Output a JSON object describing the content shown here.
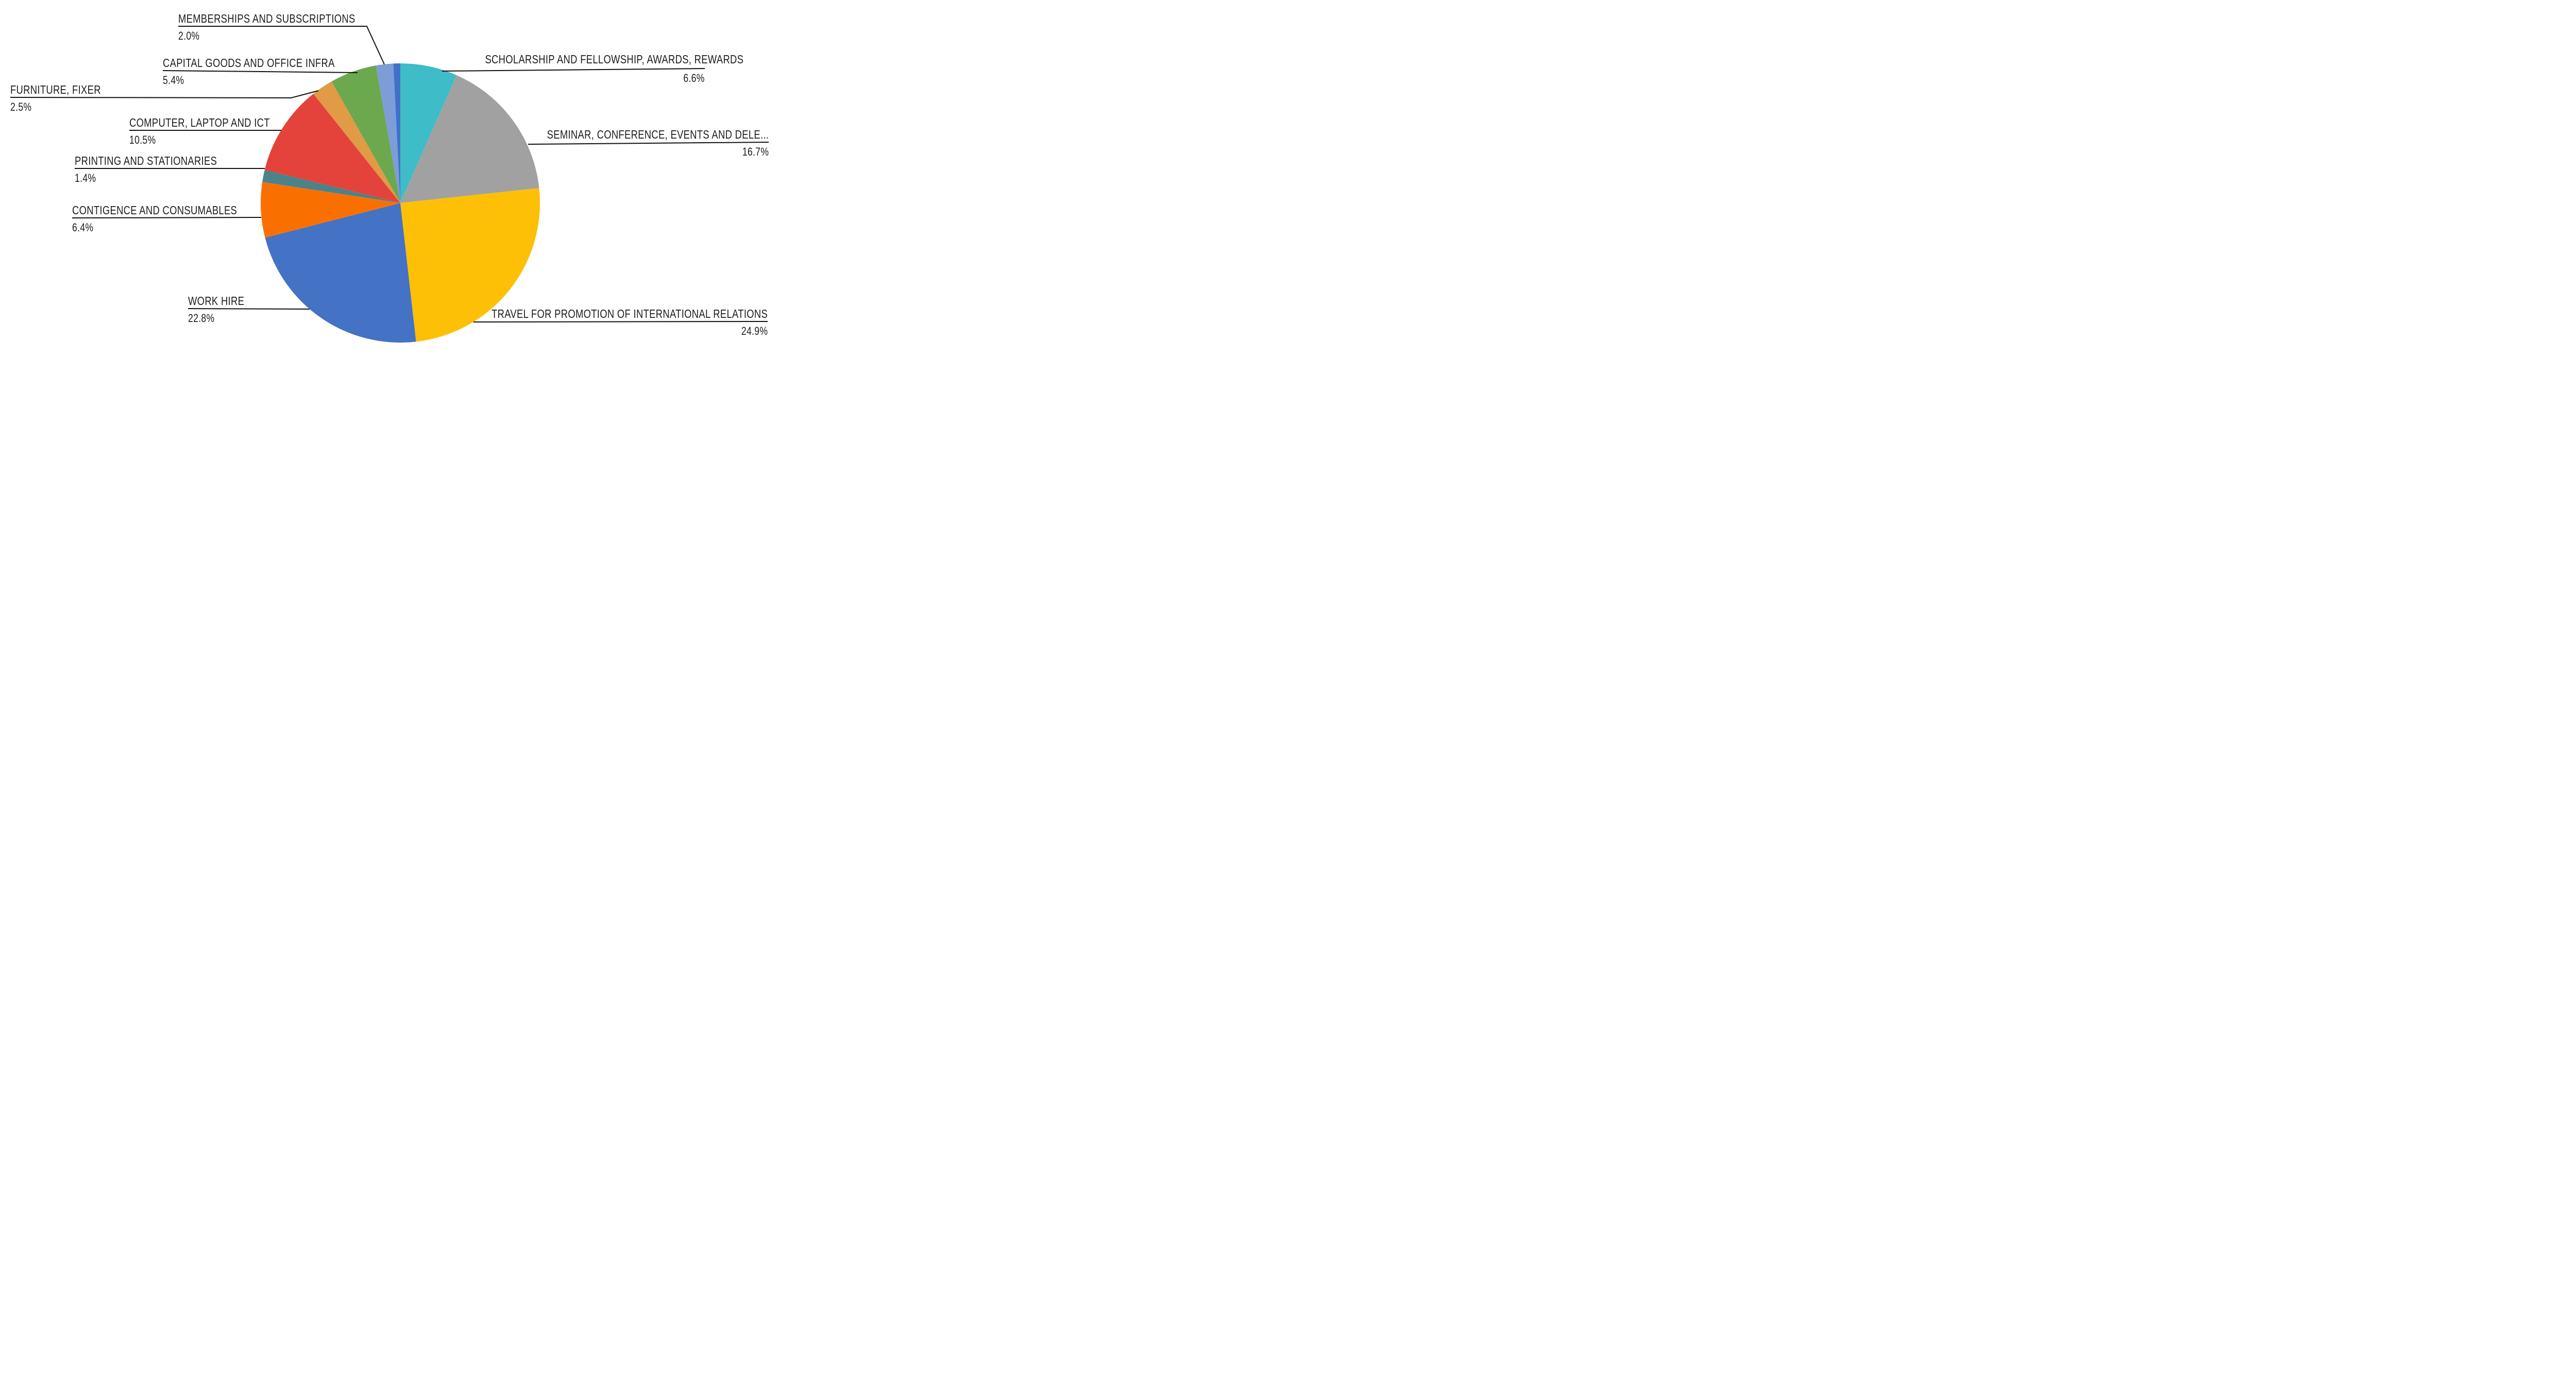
{
  "chart_data": {
    "type": "pie",
    "title": "",
    "legend_position": "none",
    "start_angle_deg": 0,
    "direction": "clockwise",
    "units": "percent",
    "slices": [
      {
        "label": "SCHOLARSHIP AND FELLOWSHIP, AWARDS, REWARDS",
        "value_pct": 6.6,
        "pct_label": "6.6%",
        "color": "#3EBCC8"
      },
      {
        "label": "SEMINAR, CONFERENCE, EVENTS AND DELE...",
        "value_pct": 16.7,
        "pct_label": "16.7%",
        "color": "#A1A1A1"
      },
      {
        "label": "TRAVEL FOR PROMOTION OF INTERNATIONAL RELATIONS",
        "value_pct": 24.9,
        "pct_label": "24.9%",
        "color": "#FEC006"
      },
      {
        "label": "WORK HIRE",
        "value_pct": 22.8,
        "pct_label": "22.8%",
        "color": "#4472C4"
      },
      {
        "label": "CONTIGENCE AND CONSUMABLES",
        "value_pct": 6.4,
        "pct_label": "6.4%",
        "color": "#FA7000"
      },
      {
        "label": "PRINTING AND STATIONARIES",
        "value_pct": 1.4,
        "pct_label": "1.4%",
        "color": "#4A8389"
      },
      {
        "label": "COMPUTER, LAPTOP AND ICT",
        "value_pct": 10.5,
        "pct_label": "10.5%",
        "color": "#E4433B"
      },
      {
        "label": "FURNITURE, FIXER",
        "value_pct": 2.5,
        "pct_label": "2.5%",
        "color": "#E19A45"
      },
      {
        "label": "CAPITAL GOODS AND OFFICE INFRA",
        "value_pct": 5.4,
        "pct_label": "5.4%",
        "color": "#6CA84E"
      },
      {
        "label": "MEMBERSHIPS AND SUBSCRIPTIONS",
        "value_pct": 2.0,
        "pct_label": "2.0%",
        "color": "#7E9CD8"
      },
      {
        "label": "",
        "value_pct": 0.8,
        "pct_label": "",
        "color": "#4170CB"
      }
    ]
  }
}
